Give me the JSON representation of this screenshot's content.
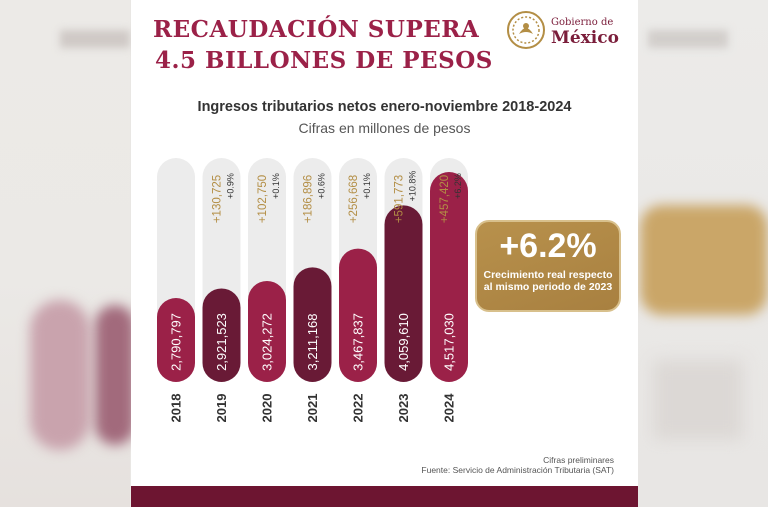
{
  "header": {
    "title_line1": "RECAUDACIÓN SUPERA",
    "title_line2": "4.5 BILLONES DE PESOS",
    "gov_small": "Gobierno de",
    "gov_big": "México"
  },
  "colors": {
    "burgundy": "#9b2148",
    "dark_burgundy": "#691a36",
    "gold": "#b38e45",
    "track": "#ececec"
  },
  "chart_data": {
    "type": "bar",
    "title": "Ingresos tributarios netos enero-noviembre 2018-2024",
    "subtitle": "Cifras en millones de pesos",
    "categories": [
      "2018",
      "2019",
      "2020",
      "2021",
      "2022",
      "2023",
      "2024"
    ],
    "values": [
      2790797,
      2921523,
      3024272,
      3211168,
      3467837,
      4059610,
      4517030
    ],
    "value_labels": [
      "2,790,797",
      "2,921,523",
      "3,024,272",
      "3,211,168",
      "3,467,837",
      "4,059,610",
      "4,517,030"
    ],
    "increase_labels": [
      "",
      "+130,725",
      "+102,750",
      "+186,896",
      "+256,668",
      "+591,773",
      "+457,420"
    ],
    "growth_labels": [
      "",
      "+0.9%",
      "+0.1%",
      "+0.6%",
      "+0.1%",
      "+10.8%",
      "+6.2%"
    ],
    "bar_colors": [
      "#9b2148",
      "#691a36",
      "#9b2148",
      "#691a36",
      "#9b2148",
      "#691a36",
      "#9b2148"
    ]
  },
  "callout": {
    "value": "+6.2%",
    "line1": "Crecimiento real respecto",
    "line2": "al mismo periodo de 2023"
  },
  "footnote": {
    "line1": "Cifras preliminares",
    "line2": "Fuente: Servicio de Administración Tributaria (SAT)"
  }
}
